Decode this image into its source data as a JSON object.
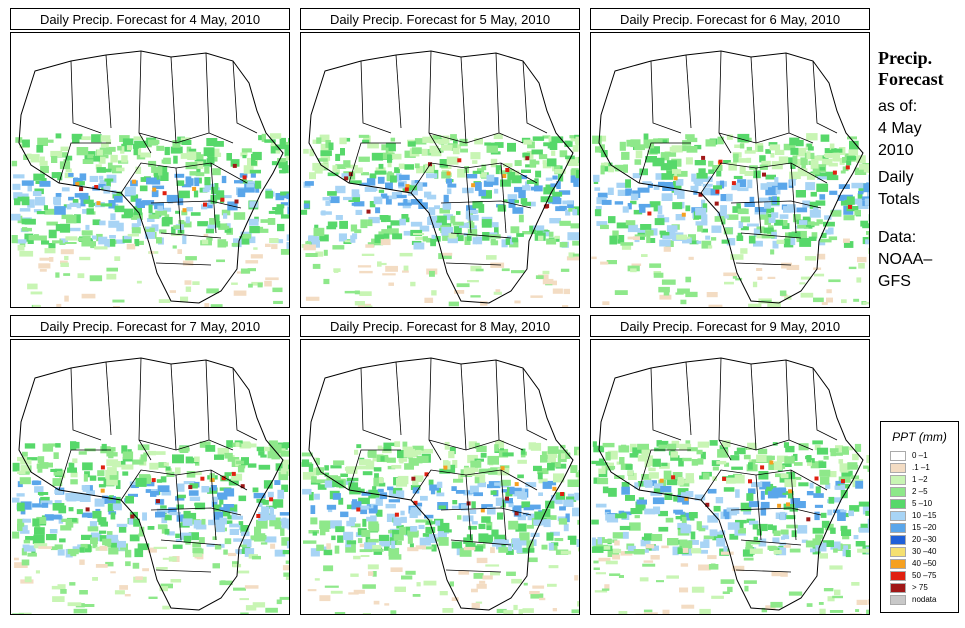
{
  "panels": [
    {
      "title": "Daily Precip. Forecast for  4 May, 2010"
    },
    {
      "title": "Daily Precip. Forecast for  5 May, 2010"
    },
    {
      "title": "Daily Precip. Forecast for  6 May, 2010"
    },
    {
      "title": "Daily Precip. Forecast for  7 May, 2010"
    },
    {
      "title": "Daily Precip. Forecast for  8 May, 2010"
    },
    {
      "title": "Daily Precip. Forecast for  9 May, 2010"
    }
  ],
  "side": {
    "title_line1": "Precip.",
    "title_line2": "Forecast",
    "asof_line1": "as of:",
    "asof_line2": "4 May",
    "asof_line3": "2010",
    "daily_line1": "Daily",
    "daily_line2": "Totals",
    "data_line1": "Data:",
    "data_line2": "NOAA–",
    "data_line3": "GFS"
  },
  "legend": {
    "title": "PPT (mm)",
    "items": [
      {
        "label": "0 –1",
        "color": "#ffffff"
      },
      {
        "label": ".1 –1",
        "color": "#f3dcc3"
      },
      {
        "label": "1 –2",
        "color": "#c8f5b4"
      },
      {
        "label": "2 –5",
        "color": "#8ee88a"
      },
      {
        "label": "5 –10",
        "color": "#57d86a"
      },
      {
        "label": "10 –15",
        "color": "#a8d4f5"
      },
      {
        "label": "15 –20",
        "color": "#5aa6ea"
      },
      {
        "label": "20 –30",
        "color": "#2060d8"
      },
      {
        "label": "30 –40",
        "color": "#f5e070"
      },
      {
        "label": "40 –50",
        "color": "#f5a020"
      },
      {
        "label": "50 –75",
        "color": "#e02010"
      },
      {
        "label": "> 75",
        "color": "#a01818"
      },
      {
        "label": "nodata",
        "color": "#c8c8c8"
      }
    ]
  }
}
